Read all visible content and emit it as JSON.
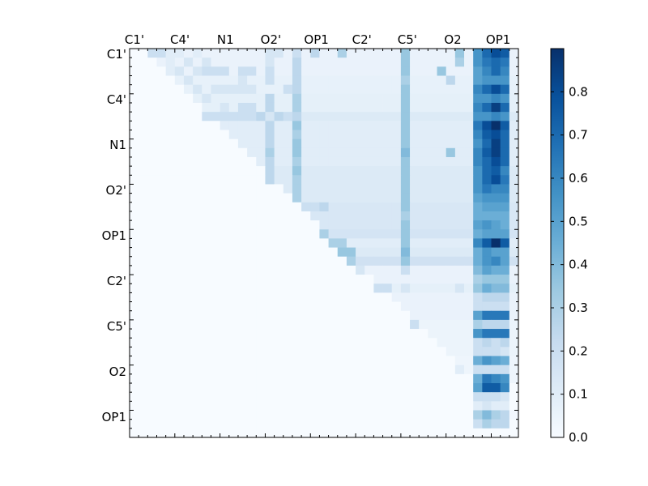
{
  "chart_data": {
    "type": "heatmap",
    "title": "",
    "n": 43,
    "x_tick_labels": [
      "C1'",
      "C4'",
      "N1",
      "O2'",
      "OP1",
      "C2'",
      "C5'",
      "O2",
      "OP1"
    ],
    "y_tick_labels": [
      "C1'",
      "C4'",
      "N1",
      "O2'",
      "OP1",
      "C2'",
      "C5'",
      "O2",
      "OP1"
    ],
    "colorbar": {
      "min": 0.0,
      "max": 0.9,
      "ticks": [
        "0.0",
        "0.1",
        "0.2",
        "0.3",
        "0.4",
        "0.5",
        "0.6",
        "0.7",
        "0.8"
      ],
      "colormap": "Blues",
      "stops": [
        "#f7fbff",
        "#deebf7",
        "#c6dbef",
        "#9ecae1",
        "#6baed6",
        "#4292c6",
        "#2171b5",
        "#08519c",
        "#08306b"
      ]
    },
    "row_extents": [
      42,
      42,
      42,
      42,
      42,
      42,
      42,
      42,
      42,
      42,
      42,
      42,
      42,
      42,
      42,
      42,
      42,
      42,
      42,
      42,
      42,
      42,
      42,
      42,
      42,
      42,
      42,
      42,
      42,
      42,
      42,
      42,
      42,
      42,
      42,
      42,
      42,
      41,
      40,
      40,
      42,
      40,
      0
    ],
    "row_bands": [
      {
        "from": 0,
        "to": 1,
        "v": 0.06
      },
      {
        "from": 1,
        "to": 2,
        "v": 0.06
      },
      {
        "from": 2,
        "to": 3,
        "v": 0.06
      },
      {
        "from": 3,
        "to": 4,
        "v": 0.07
      },
      {
        "from": 4,
        "to": 5,
        "v": 0.07
      },
      {
        "from": 5,
        "to": 6,
        "v": 0.08
      },
      {
        "from": 6,
        "to": 7,
        "v": 0.08
      },
      {
        "from": 7,
        "to": 8,
        "v": 0.12
      },
      {
        "from": 8,
        "to": 9,
        "v": 0.1
      },
      {
        "from": 9,
        "to": 10,
        "v": 0.1
      },
      {
        "from": 10,
        "to": 11,
        "v": 0.1
      },
      {
        "from": 11,
        "to": 12,
        "v": 0.1
      },
      {
        "from": 12,
        "to": 13,
        "v": 0.1
      },
      {
        "from": 13,
        "to": 14,
        "v": 0.12
      },
      {
        "from": 14,
        "to": 15,
        "v": 0.12
      },
      {
        "from": 15,
        "to": 16,
        "v": 0.12
      },
      {
        "from": 16,
        "to": 17,
        "v": 0.12
      },
      {
        "from": 17,
        "to": 18,
        "v": 0.14
      },
      {
        "from": 18,
        "to": 19,
        "v": 0.14
      },
      {
        "from": 19,
        "to": 20,
        "v": 0.14
      },
      {
        "from": 20,
        "to": 21,
        "v": 0.16
      },
      {
        "from": 21,
        "to": 22,
        "v": 0.1
      },
      {
        "from": 22,
        "to": 23,
        "v": 0.12
      },
      {
        "from": 23,
        "to": 24,
        "v": 0.18
      },
      {
        "from": 24,
        "to": 25,
        "v": 0.06
      },
      {
        "from": 25,
        "to": 26,
        "v": 0.06
      },
      {
        "from": 26,
        "to": 27,
        "v": 0.08
      },
      {
        "from": 27,
        "to": 28,
        "v": 0.06
      },
      {
        "from": 28,
        "to": 29,
        "v": 0.06
      },
      {
        "from": 29,
        "to": 30,
        "v": 0.06
      },
      {
        "from": 30,
        "to": 31,
        "v": 0.05
      },
      {
        "from": 31,
        "to": 32,
        "v": 0.05
      },
      {
        "from": 32,
        "to": 33,
        "v": 0.05
      },
      {
        "from": 33,
        "to": 34,
        "v": 0.05
      },
      {
        "from": 34,
        "to": 35,
        "v": 0.04
      },
      {
        "from": 35,
        "to": 36,
        "v": 0.04
      },
      {
        "from": 36,
        "to": 37,
        "v": 0.04
      },
      {
        "from": 37,
        "to": 38,
        "v": 0.03
      },
      {
        "from": 38,
        "to": 39,
        "v": 0.03
      },
      {
        "from": 39,
        "to": 40,
        "v": 0.03
      },
      {
        "from": 40,
        "to": 41,
        "v": 0.02
      },
      {
        "from": 41,
        "to": 42,
        "v": 0.02
      },
      {
        "from": 42,
        "to": 43,
        "v": 0.0
      }
    ],
    "cells": [
      [
        0,
        2,
        0.2
      ],
      [
        0,
        3,
        0.2
      ],
      [
        0,
        4,
        0.1
      ],
      [
        0,
        5,
        0.1
      ],
      [
        0,
        7,
        0.1
      ],
      [
        0,
        15,
        0.15
      ],
      [
        0,
        16,
        0.15
      ],
      [
        0,
        18,
        0.2
      ],
      [
        0,
        20,
        0.25
      ],
      [
        0,
        23,
        0.3
      ],
      [
        0,
        30,
        0.35
      ],
      [
        0,
        36,
        0.35
      ],
      [
        0,
        38,
        0.55
      ],
      [
        0,
        39,
        0.7
      ],
      [
        0,
        40,
        0.8
      ],
      [
        0,
        41,
        0.75
      ],
      [
        1,
        4,
        0.1
      ],
      [
        1,
        6,
        0.15
      ],
      [
        1,
        8,
        0.15
      ],
      [
        1,
        15,
        0.15
      ],
      [
        1,
        18,
        0.25
      ],
      [
        1,
        30,
        0.35
      ],
      [
        1,
        36,
        0.3
      ],
      [
        1,
        38,
        0.55
      ],
      [
        1,
        39,
        0.65
      ],
      [
        1,
        40,
        0.7
      ],
      [
        1,
        41,
        0.65
      ],
      [
        2,
        4,
        0.1
      ],
      [
        2,
        5,
        0.15
      ],
      [
        2,
        7,
        0.15
      ],
      [
        2,
        8,
        0.2
      ],
      [
        2,
        9,
        0.2
      ],
      [
        2,
        10,
        0.2
      ],
      [
        2,
        12,
        0.2
      ],
      [
        2,
        13,
        0.2
      ],
      [
        2,
        15,
        0.2
      ],
      [
        2,
        18,
        0.25
      ],
      [
        2,
        30,
        0.35
      ],
      [
        2,
        34,
        0.35
      ],
      [
        2,
        38,
        0.5
      ],
      [
        2,
        39,
        0.6
      ],
      [
        2,
        40,
        0.7
      ],
      [
        2,
        41,
        0.6
      ],
      [
        3,
        6,
        0.15
      ],
      [
        3,
        12,
        0.15
      ],
      [
        3,
        15,
        0.2
      ],
      [
        3,
        18,
        0.25
      ],
      [
        3,
        30,
        0.3
      ],
      [
        3,
        35,
        0.25
      ],
      [
        3,
        38,
        0.5
      ],
      [
        3,
        39,
        0.55
      ],
      [
        3,
        40,
        0.55
      ],
      [
        3,
        41,
        0.55
      ],
      [
        4,
        7,
        0.15
      ],
      [
        4,
        9,
        0.15
      ],
      [
        4,
        10,
        0.15
      ],
      [
        4,
        11,
        0.15
      ],
      [
        4,
        12,
        0.15
      ],
      [
        4,
        13,
        0.15
      ],
      [
        4,
        17,
        0.2
      ],
      [
        4,
        18,
        0.25
      ],
      [
        4,
        30,
        0.35
      ],
      [
        4,
        38,
        0.6
      ],
      [
        4,
        39,
        0.7
      ],
      [
        4,
        40,
        0.8
      ],
      [
        4,
        41,
        0.7
      ],
      [
        5,
        8,
        0.15
      ],
      [
        5,
        15,
        0.25
      ],
      [
        5,
        18,
        0.3
      ],
      [
        5,
        30,
        0.35
      ],
      [
        5,
        38,
        0.55
      ],
      [
        5,
        39,
        0.55
      ],
      [
        5,
        40,
        0.6
      ],
      [
        5,
        41,
        0.55
      ],
      [
        6,
        10,
        0.15
      ],
      [
        6,
        12,
        0.2
      ],
      [
        6,
        13,
        0.2
      ],
      [
        6,
        15,
        0.25
      ],
      [
        6,
        18,
        0.3
      ],
      [
        6,
        30,
        0.35
      ],
      [
        6,
        38,
        0.6
      ],
      [
        6,
        39,
        0.7
      ],
      [
        6,
        40,
        0.85
      ],
      [
        6,
        41,
        0.7
      ],
      [
        7,
        8,
        0.2
      ],
      [
        7,
        9,
        0.2
      ],
      [
        7,
        10,
        0.2
      ],
      [
        7,
        11,
        0.2
      ],
      [
        7,
        12,
        0.2
      ],
      [
        7,
        13,
        0.2
      ],
      [
        7,
        14,
        0.25
      ],
      [
        7,
        15,
        0.15
      ],
      [
        7,
        16,
        0.25
      ],
      [
        7,
        17,
        0.2
      ],
      [
        7,
        18,
        0.25
      ],
      [
        7,
        30,
        0.35
      ],
      [
        7,
        38,
        0.55
      ],
      [
        7,
        39,
        0.55
      ],
      [
        7,
        40,
        0.6
      ],
      [
        7,
        41,
        0.55
      ],
      [
        8,
        15,
        0.25
      ],
      [
        8,
        18,
        0.35
      ],
      [
        8,
        30,
        0.35
      ],
      [
        8,
        38,
        0.65
      ],
      [
        8,
        39,
        0.8
      ],
      [
        8,
        40,
        0.9
      ],
      [
        8,
        41,
        0.75
      ],
      [
        9,
        15,
        0.25
      ],
      [
        9,
        18,
        0.3
      ],
      [
        9,
        30,
        0.35
      ],
      [
        9,
        38,
        0.6
      ],
      [
        9,
        39,
        0.75
      ],
      [
        9,
        40,
        0.8
      ],
      [
        9,
        41,
        0.7
      ],
      [
        10,
        15,
        0.25
      ],
      [
        10,
        18,
        0.35
      ],
      [
        10,
        30,
        0.35
      ],
      [
        10,
        38,
        0.55
      ],
      [
        10,
        39,
        0.7
      ],
      [
        10,
        40,
        0.85
      ],
      [
        10,
        41,
        0.7
      ],
      [
        11,
        15,
        0.3
      ],
      [
        11,
        18,
        0.35
      ],
      [
        11,
        30,
        0.4
      ],
      [
        11,
        35,
        0.35
      ],
      [
        11,
        38,
        0.6
      ],
      [
        11,
        39,
        0.75
      ],
      [
        11,
        40,
        0.85
      ],
      [
        11,
        41,
        0.7
      ],
      [
        12,
        15,
        0.25
      ],
      [
        12,
        18,
        0.3
      ],
      [
        12,
        30,
        0.35
      ],
      [
        12,
        38,
        0.6
      ],
      [
        12,
        39,
        0.7
      ],
      [
        12,
        40,
        0.8
      ],
      [
        12,
        41,
        0.7
      ],
      [
        13,
        15,
        0.25
      ],
      [
        13,
        18,
        0.35
      ],
      [
        13,
        30,
        0.35
      ],
      [
        13,
        38,
        0.55
      ],
      [
        13,
        39,
        0.7
      ],
      [
        13,
        40,
        0.75
      ],
      [
        13,
        41,
        0.6
      ],
      [
        14,
        15,
        0.25
      ],
      [
        14,
        18,
        0.3
      ],
      [
        14,
        30,
        0.35
      ],
      [
        14,
        38,
        0.55
      ],
      [
        14,
        39,
        0.7
      ],
      [
        14,
        40,
        0.8
      ],
      [
        14,
        41,
        0.65
      ],
      [
        15,
        18,
        0.3
      ],
      [
        15,
        30,
        0.35
      ],
      [
        15,
        38,
        0.55
      ],
      [
        15,
        39,
        0.65
      ],
      [
        15,
        40,
        0.6
      ],
      [
        15,
        41,
        0.6
      ],
      [
        16,
        18,
        0.3
      ],
      [
        16,
        30,
        0.35
      ],
      [
        16,
        38,
        0.5
      ],
      [
        16,
        39,
        0.55
      ],
      [
        16,
        40,
        0.55
      ],
      [
        16,
        41,
        0.55
      ],
      [
        17,
        19,
        0.2
      ],
      [
        17,
        20,
        0.2
      ],
      [
        17,
        21,
        0.25
      ],
      [
        17,
        30,
        0.35
      ],
      [
        17,
        38,
        0.45
      ],
      [
        17,
        39,
        0.5
      ],
      [
        17,
        40,
        0.5
      ],
      [
        17,
        41,
        0.5
      ],
      [
        18,
        30,
        0.3
      ],
      [
        18,
        38,
        0.45
      ],
      [
        18,
        39,
        0.45
      ],
      [
        18,
        40,
        0.45
      ],
      [
        18,
        41,
        0.45
      ],
      [
        19,
        30,
        0.35
      ],
      [
        19,
        38,
        0.5
      ],
      [
        19,
        39,
        0.55
      ],
      [
        19,
        40,
        0.5
      ],
      [
        19,
        41,
        0.45
      ],
      [
        20,
        21,
        0.3
      ],
      [
        20,
        30,
        0.35
      ],
      [
        20,
        38,
        0.45
      ],
      [
        20,
        39,
        0.5
      ],
      [
        20,
        40,
        0.5
      ],
      [
        20,
        41,
        0.5
      ],
      [
        21,
        22,
        0.3
      ],
      [
        21,
        23,
        0.3
      ],
      [
        21,
        30,
        0.35
      ],
      [
        21,
        38,
        0.6
      ],
      [
        21,
        39,
        0.75
      ],
      [
        21,
        40,
        0.9
      ],
      [
        21,
        41,
        0.75
      ],
      [
        22,
        23,
        0.35
      ],
      [
        22,
        24,
        0.35
      ],
      [
        22,
        30,
        0.4
      ],
      [
        22,
        38,
        0.45
      ],
      [
        22,
        39,
        0.55
      ],
      [
        22,
        40,
        0.5
      ],
      [
        22,
        41,
        0.5
      ],
      [
        23,
        24,
        0.3
      ],
      [
        23,
        30,
        0.35
      ],
      [
        23,
        38,
        0.45
      ],
      [
        23,
        39,
        0.55
      ],
      [
        23,
        40,
        0.6
      ],
      [
        23,
        41,
        0.5
      ],
      [
        24,
        25,
        0.15
      ],
      [
        24,
        30,
        0.2
      ],
      [
        24,
        38,
        0.4
      ],
      [
        24,
        39,
        0.5
      ],
      [
        24,
        40,
        0.45
      ],
      [
        24,
        41,
        0.45
      ],
      [
        25,
        38,
        0.3
      ],
      [
        25,
        39,
        0.35
      ],
      [
        25,
        40,
        0.35
      ],
      [
        25,
        41,
        0.35
      ],
      [
        26,
        27,
        0.2
      ],
      [
        26,
        28,
        0.2
      ],
      [
        26,
        30,
        0.15
      ],
      [
        26,
        36,
        0.15
      ],
      [
        26,
        38,
        0.35
      ],
      [
        26,
        39,
        0.45
      ],
      [
        26,
        40,
        0.4
      ],
      [
        26,
        41,
        0.4
      ],
      [
        27,
        38,
        0.2
      ],
      [
        27,
        39,
        0.25
      ],
      [
        27,
        40,
        0.25
      ],
      [
        27,
        41,
        0.25
      ],
      [
        28,
        38,
        0.2
      ],
      [
        28,
        39,
        0.2
      ],
      [
        28,
        40,
        0.2
      ],
      [
        28,
        41,
        0.2
      ],
      [
        29,
        38,
        0.5
      ],
      [
        29,
        39,
        0.65
      ],
      [
        29,
        40,
        0.65
      ],
      [
        29,
        41,
        0.65
      ],
      [
        30,
        31,
        0.2
      ],
      [
        30,
        38,
        0.3
      ],
      [
        30,
        39,
        0.25
      ],
      [
        30,
        40,
        0.25
      ],
      [
        30,
        41,
        0.25
      ],
      [
        31,
        38,
        0.55
      ],
      [
        31,
        39,
        0.65
      ],
      [
        31,
        40,
        0.65
      ],
      [
        31,
        41,
        0.65
      ],
      [
        32,
        38,
        0.2
      ],
      [
        32,
        39,
        0.25
      ],
      [
        32,
        40,
        0.2
      ],
      [
        32,
        41,
        0.25
      ],
      [
        33,
        38,
        0.2
      ],
      [
        33,
        39,
        0.2
      ],
      [
        33,
        40,
        0.2
      ],
      [
        33,
        41,
        0.15
      ],
      [
        34,
        38,
        0.45
      ],
      [
        34,
        39,
        0.55
      ],
      [
        34,
        40,
        0.5
      ],
      [
        34,
        41,
        0.45
      ],
      [
        35,
        36,
        0.1
      ],
      [
        35,
        38,
        0.2
      ],
      [
        35,
        39,
        0.2
      ],
      [
        35,
        40,
        0.2
      ],
      [
        35,
        41,
        0.2
      ],
      [
        36,
        38,
        0.45
      ],
      [
        36,
        39,
        0.65
      ],
      [
        36,
        40,
        0.6
      ],
      [
        36,
        41,
        0.55
      ],
      [
        37,
        38,
        0.5
      ],
      [
        37,
        39,
        0.75
      ],
      [
        37,
        40,
        0.75
      ],
      [
        37,
        41,
        0.6
      ],
      [
        38,
        38,
        0.2
      ],
      [
        38,
        39,
        0.2
      ],
      [
        38,
        40,
        0.2
      ],
      [
        38,
        41,
        0.15
      ],
      [
        39,
        38,
        0.1
      ],
      [
        39,
        39,
        0.15
      ],
      [
        39,
        40,
        0.1
      ],
      [
        39,
        41,
        0.1
      ],
      [
        40,
        38,
        0.3
      ],
      [
        40,
        39,
        0.4
      ],
      [
        40,
        40,
        0.3
      ],
      [
        40,
        41,
        0.25
      ],
      [
        41,
        38,
        0.2
      ],
      [
        41,
        39,
        0.3
      ],
      [
        41,
        40,
        0.25
      ],
      [
        41,
        41,
        0.25
      ]
    ]
  }
}
